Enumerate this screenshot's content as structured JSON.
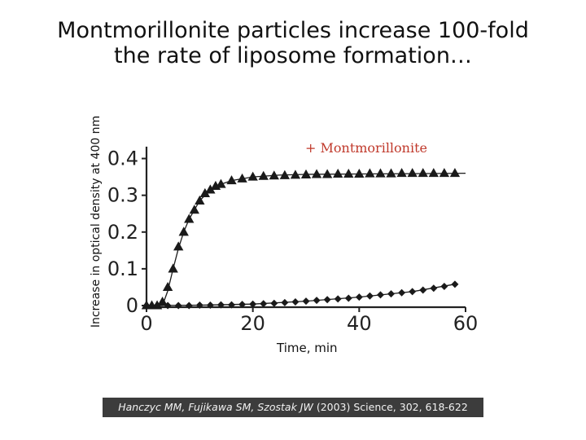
{
  "slide": {
    "title_line1": "Montmorillonite particles increase 100-fold",
    "title_line2": "the rate of liposome formation…",
    "citation_authors": "Hanczyc MM, Fujikawa SM, Szostak JW",
    "citation_rest": "(2003) Science, 302, 618-622"
  },
  "chart_data": {
    "type": "scatter",
    "xlabel": "Time, min",
    "ylabel": "Increase in optical density at 400 nm",
    "xlim": [
      0,
      60
    ],
    "ylim": [
      0,
      0.45
    ],
    "xticks": [
      0,
      20,
      40,
      60
    ],
    "yticks": [
      0,
      0.1,
      0.2,
      0.3,
      0.4
    ],
    "ytick_labels": [
      "0",
      "0.1",
      "0.2",
      "0.3",
      "0.4"
    ],
    "grid": false,
    "annotation": "+ Montmorillonite",
    "annotation_color": "#c0392b",
    "marker_color": "#1a1a1a",
    "series": [
      {
        "marker": "triangle",
        "x": [
          0,
          1,
          2,
          3,
          4,
          5,
          6,
          7,
          8,
          9,
          10,
          11,
          12,
          13,
          14,
          16,
          18,
          20,
          22,
          24,
          26,
          28,
          30,
          32,
          34,
          36,
          38,
          40,
          42,
          44,
          46,
          48,
          50,
          52,
          54,
          56,
          58
        ],
        "y": [
          0,
          0,
          0,
          0.01,
          0.05,
          0.1,
          0.16,
          0.2,
          0.235,
          0.26,
          0.285,
          0.305,
          0.315,
          0.325,
          0.33,
          0.34,
          0.345,
          0.35,
          0.352,
          0.353,
          0.354,
          0.355,
          0.356,
          0.357,
          0.357,
          0.358,
          0.358,
          0.358,
          0.359,
          0.359,
          0.359,
          0.36,
          0.36,
          0.36,
          0.36,
          0.36,
          0.36
        ]
      },
      {
        "marker": "diamond",
        "x": [
          0,
          2,
          4,
          6,
          8,
          10,
          12,
          14,
          16,
          18,
          20,
          22,
          24,
          26,
          28,
          30,
          32,
          34,
          36,
          38,
          40,
          42,
          44,
          46,
          48,
          50,
          52,
          54,
          56,
          58
        ],
        "y": [
          0,
          0,
          0,
          0,
          0,
          0.001,
          0.001,
          0.002,
          0.002,
          0.003,
          0.004,
          0.005,
          0.006,
          0.008,
          0.01,
          0.012,
          0.014,
          0.016,
          0.018,
          0.02,
          0.023,
          0.026,
          0.029,
          0.032,
          0.035,
          0.038,
          0.042,
          0.047,
          0.052,
          0.058
        ]
      }
    ],
    "fit_curves": [
      {
        "x": [
          0,
          2,
          3,
          4,
          5,
          6,
          7,
          8,
          10,
          12,
          14,
          16,
          20,
          25,
          30,
          40,
          50,
          60
        ],
        "y": [
          0,
          0,
          0,
          0.04,
          0.1,
          0.155,
          0.2,
          0.235,
          0.285,
          0.315,
          0.33,
          0.34,
          0.35,
          0.355,
          0.357,
          0.358,
          0.359,
          0.36
        ]
      },
      {
        "x": [
          0,
          10,
          20,
          30,
          40,
          50,
          58
        ],
        "y": [
          0,
          0.001,
          0.004,
          0.012,
          0.023,
          0.038,
          0.058
        ]
      }
    ]
  }
}
